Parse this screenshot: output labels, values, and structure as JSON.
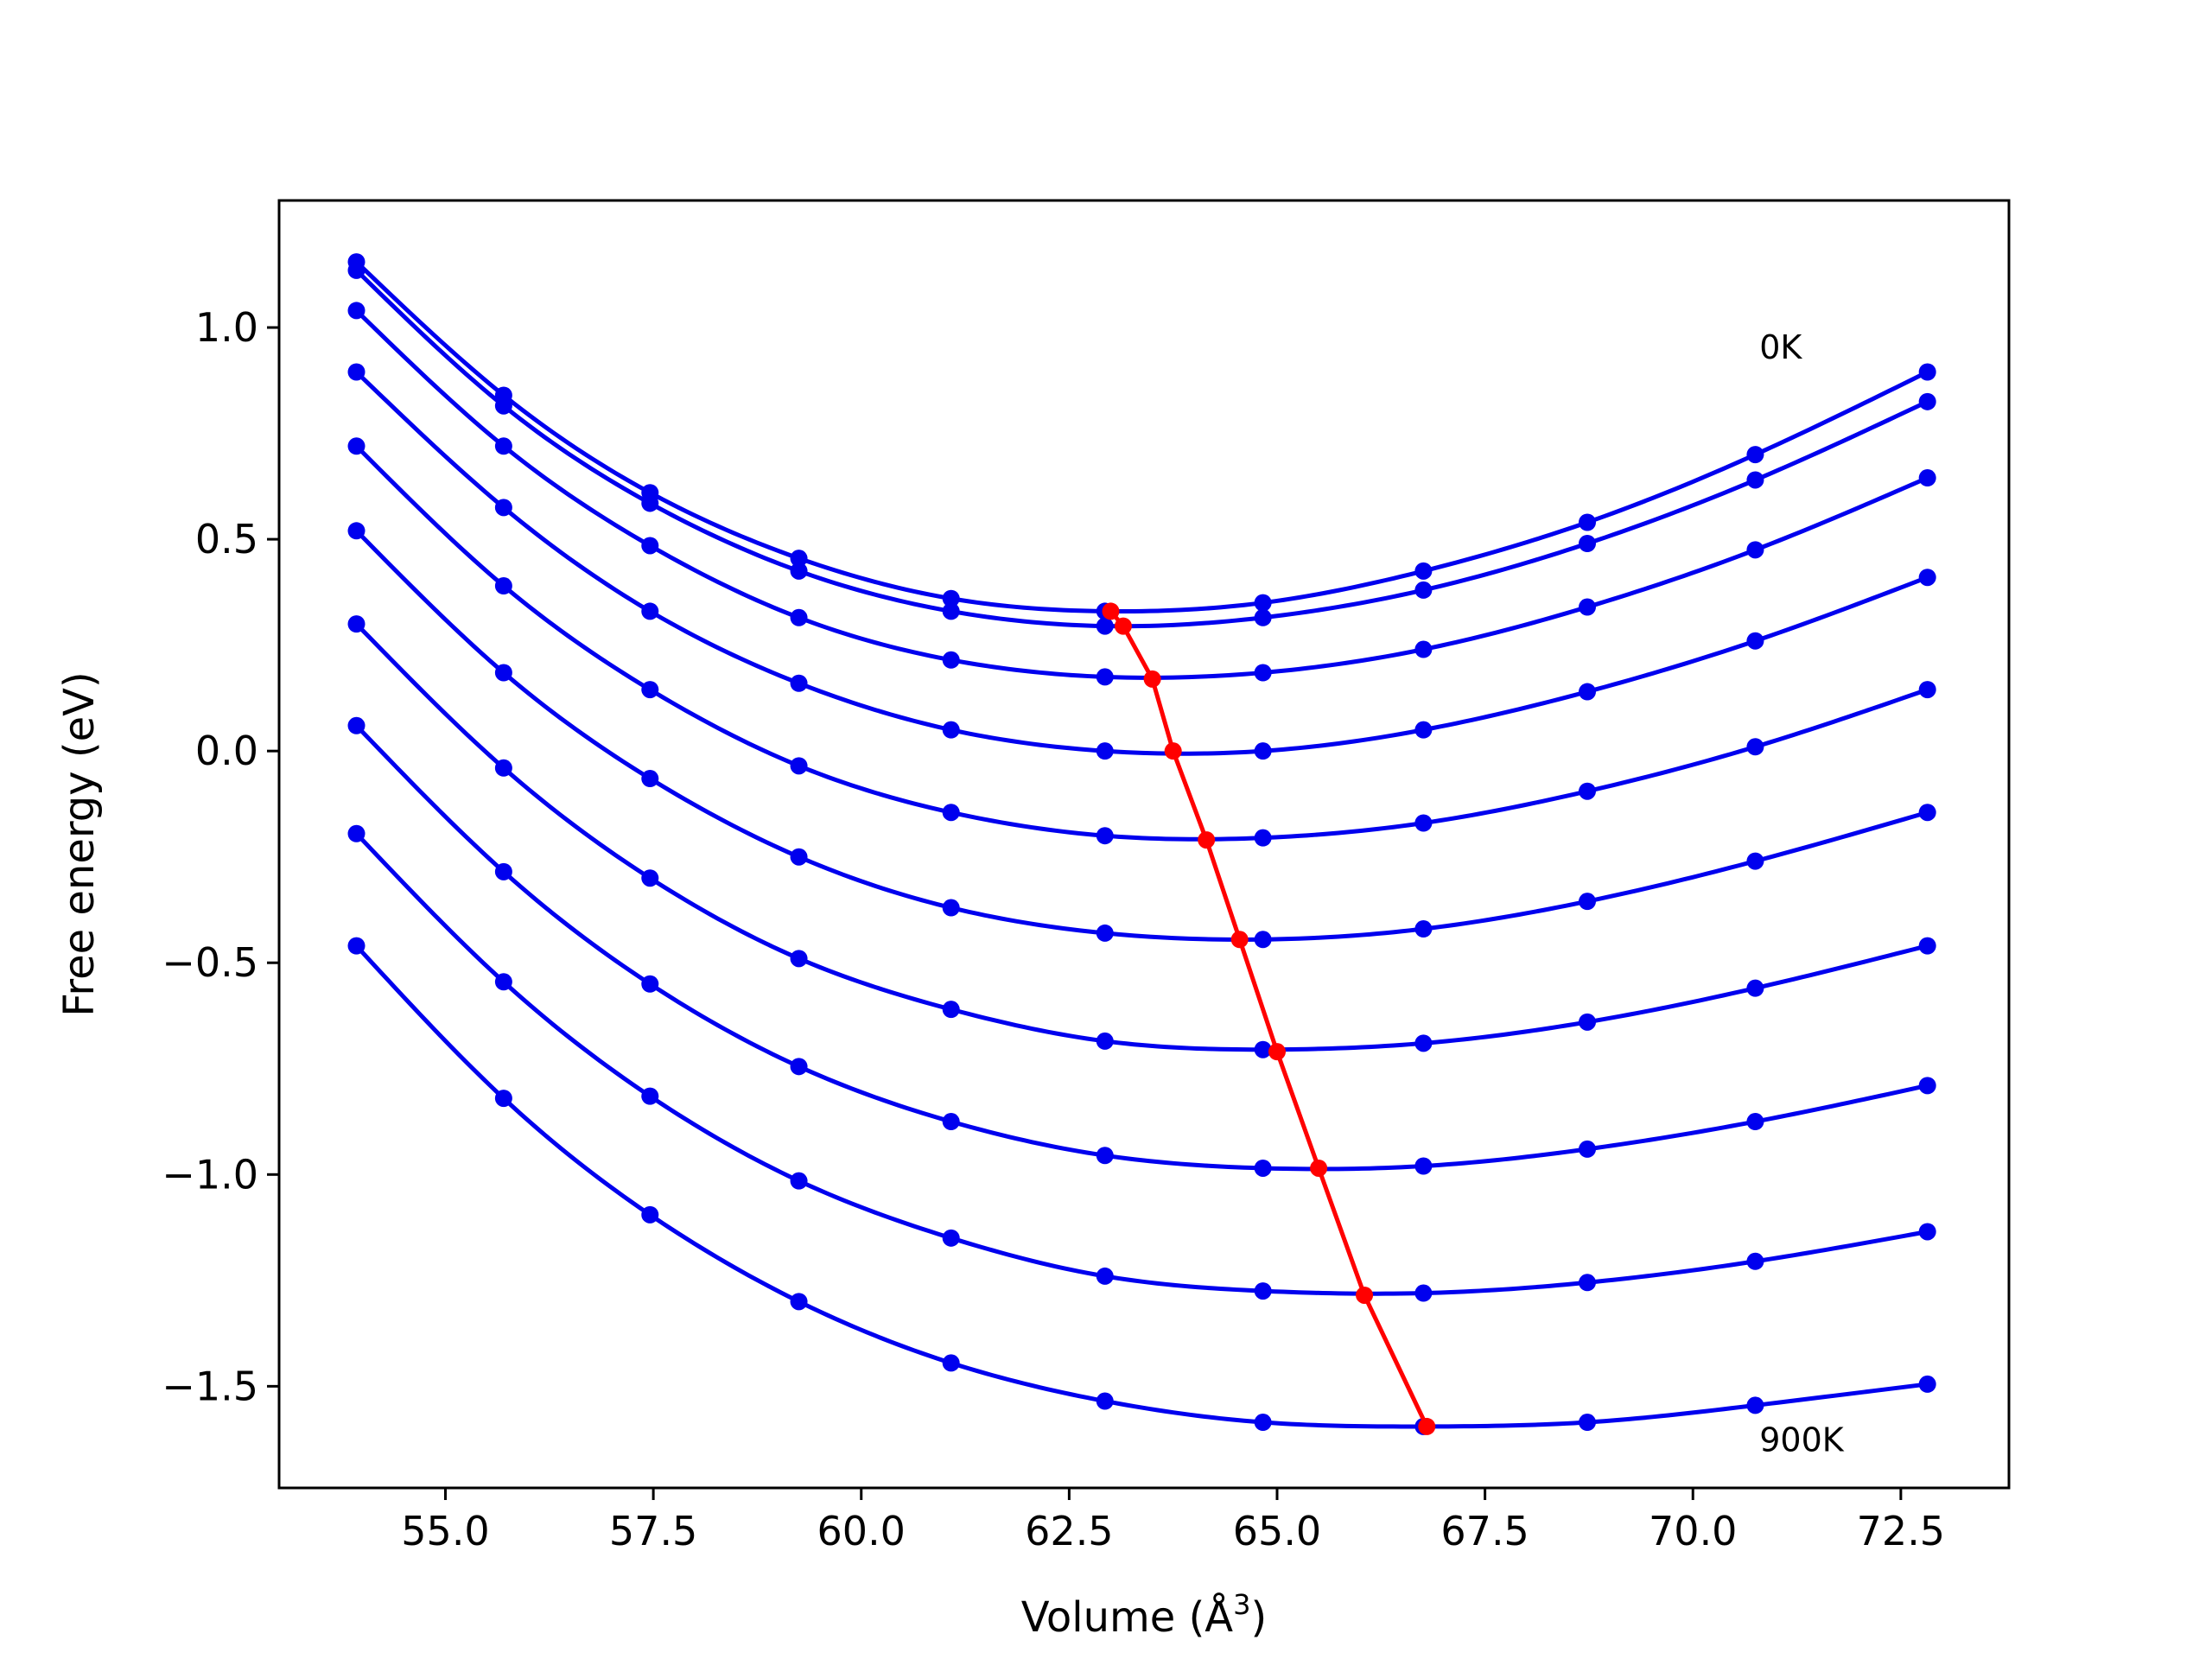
{
  "chart_data": {
    "type": "line",
    "title": "",
    "xlabel": "Volume (Å",
    "xlabel_sup": "3",
    "xlabel_close": ")",
    "ylabel": "Free energy (eV)",
    "xlim": [
      53.0,
      73.8
    ],
    "ylim": [
      -1.74,
      1.3
    ],
    "xticks": [
      55.0,
      57.5,
      60.0,
      62.5,
      65.0,
      67.5,
      70.0,
      72.5
    ],
    "xtick_labels": [
      "55.0",
      "57.5",
      "60.0",
      "62.5",
      "65.0",
      "67.5",
      "70.0",
      "72.5"
    ],
    "yticks": [
      1.0,
      0.5,
      0.0,
      -0.5,
      -1.0,
      -1.5
    ],
    "ytick_labels": [
      "1.0",
      "0.5",
      "0.0",
      "−0.5",
      "−1.0",
      "−1.5"
    ],
    "grid": false,
    "legend": "none",
    "x": [
      53.93,
      55.7,
      57.46,
      59.25,
      61.08,
      62.93,
      64.83,
      66.76,
      68.73,
      70.75,
      72.82
    ],
    "series": [
      {
        "values": [
          1.155,
          0.84,
          0.61,
          0.455,
          0.36,
          0.33,
          0.35,
          0.425,
          0.54,
          0.7,
          0.895
        ]
      },
      {
        "values": [
          1.135,
          0.815,
          0.585,
          0.425,
          0.33,
          0.295,
          0.315,
          0.38,
          0.49,
          0.64,
          0.825
        ]
      },
      {
        "values": [
          1.04,
          0.72,
          0.485,
          0.315,
          0.215,
          0.175,
          0.185,
          0.24,
          0.34,
          0.475,
          0.645
        ]
      },
      {
        "values": [
          0.895,
          0.575,
          0.33,
          0.16,
          0.05,
          0.0,
          0.0,
          0.05,
          0.14,
          0.26,
          0.41
        ]
      },
      {
        "values": [
          0.72,
          0.39,
          0.145,
          -0.035,
          -0.145,
          -0.2,
          -0.205,
          -0.17,
          -0.095,
          0.01,
          0.145
        ]
      },
      {
        "values": [
          0.52,
          0.185,
          -0.065,
          -0.25,
          -0.37,
          -0.43,
          -0.445,
          -0.42,
          -0.355,
          -0.26,
          -0.145
        ]
      },
      {
        "values": [
          0.3,
          -0.04,
          -0.3,
          -0.49,
          -0.61,
          -0.685,
          -0.705,
          -0.69,
          -0.64,
          -0.56,
          -0.46
        ]
      },
      {
        "values": [
          0.06,
          -0.285,
          -0.55,
          -0.745,
          -0.875,
          -0.955,
          -0.985,
          -0.98,
          -0.94,
          -0.875,
          -0.79
        ]
      },
      {
        "values": [
          -0.195,
          -0.545,
          -0.815,
          -1.015,
          -1.15,
          -1.24,
          -1.275,
          -1.28,
          -1.255,
          -1.205,
          -1.135
        ]
      },
      {
        "values": [
          -0.46,
          -0.82,
          -1.095,
          -1.3,
          -1.445,
          -1.535,
          -1.585,
          -1.595,
          -1.585,
          -1.545,
          -1.495
        ]
      }
    ],
    "minima": {
      "x": [
        63.0,
        63.15,
        63.5,
        63.75,
        64.15,
        64.55,
        65.0,
        65.5,
        66.05,
        66.8
      ],
      "y": [
        0.33,
        0.295,
        0.17,
        0.0,
        -0.21,
        -0.445,
        -0.71,
        -0.985,
        -1.285,
        -1.595
      ]
    },
    "annotations": [
      {
        "text": "0K",
        "x": 70.8,
        "y": 0.955
      },
      {
        "text": "900K",
        "x": 70.8,
        "y": -1.625
      }
    ],
    "colors": {
      "curves": "#0000ee",
      "minima": "#ff0000",
      "axes": "#000000"
    }
  }
}
